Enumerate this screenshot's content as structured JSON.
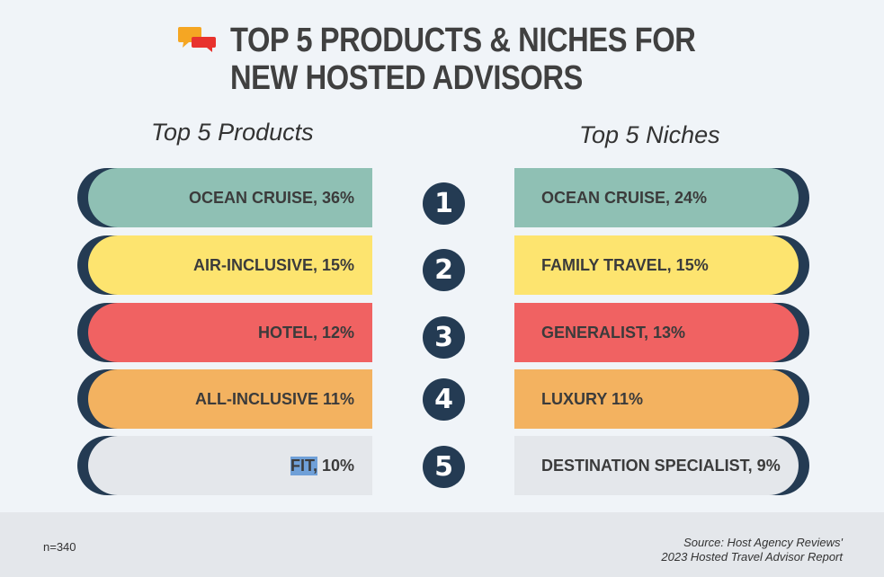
{
  "title": {
    "line1": "TOP 5 PRODUCTS & NICHES FOR",
    "line2": "NEW HOSTED ADVISORS"
  },
  "icon": "speech-bubbles-icon",
  "columns": {
    "left_heading": "Top 5 Products",
    "right_heading": "Top 5 Niches"
  },
  "chart_data": {
    "type": "table",
    "ranks": [
      "1",
      "2",
      "3",
      "4",
      "5"
    ],
    "products": [
      {
        "label": "OCEAN CRUISE, 36%",
        "name": "OCEAN CRUISE",
        "value": 36
      },
      {
        "label": "AIR-INCLUSIVE, 15%",
        "name": "AIR-INCLUSIVE",
        "value": 15
      },
      {
        "label": "HOTEL, 12%",
        "name": "HOTEL",
        "value": 12
      },
      {
        "label": "ALL-INCLUSIVE 11%",
        "name": "ALL-INCLUSIVE",
        "value": 11
      },
      {
        "label_highlight": "FIT,",
        "label_rest": " 10%",
        "name": "FIT",
        "value": 10
      }
    ],
    "niches": [
      {
        "label": "OCEAN CRUISE, 24%",
        "name": "OCEAN CRUISE",
        "value": 24
      },
      {
        "label": "FAMILY TRAVEL, 15%",
        "name": "FAMILY TRAVEL",
        "value": 15
      },
      {
        "label": "GENERALIST, 13%",
        "name": "GENERALIST",
        "value": 13
      },
      {
        "label": "LUXURY 11%",
        "name": "LUXURY",
        "value": 11
      },
      {
        "label": "DESTINATION SPECIALIST, 9%",
        "name": "DESTINATION SPECIALIST",
        "value": 9
      }
    ],
    "row_colors": [
      "#8fc0b4",
      "#fde46f",
      "#f06262",
      "#f3b260",
      "#e4e7eb"
    ]
  },
  "footer": {
    "n": "n=340",
    "source_line1": "Source: Host Agency Reviews'",
    "source_line2": "2023 Hosted Travel Advisor Report"
  }
}
